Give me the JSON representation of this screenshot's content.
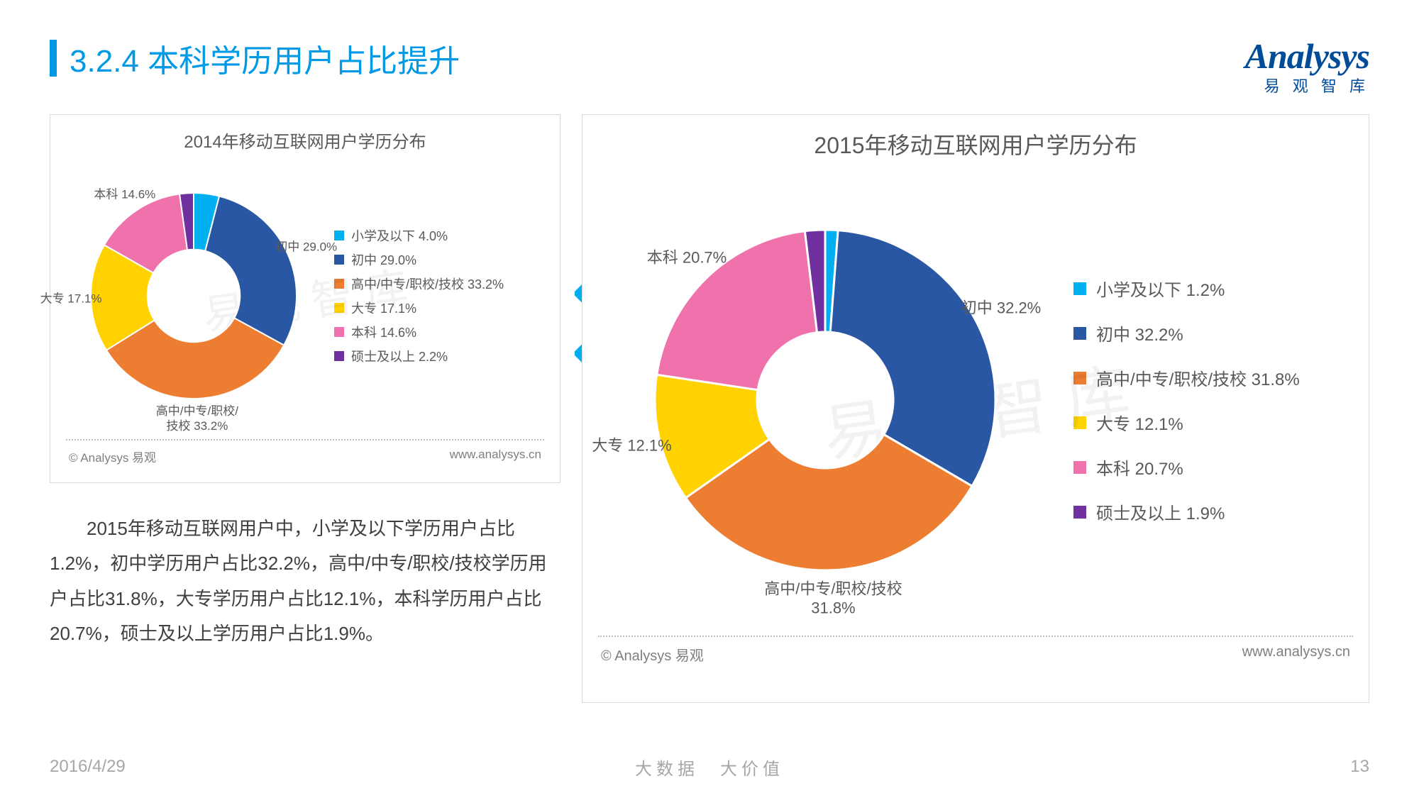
{
  "header": {
    "title": "3.2.4 本科学历用户占比提升",
    "accent_color": "#0099e6",
    "logo_main": "Analysys",
    "logo_sub": "易 观 智 库",
    "logo_color": "#004c99"
  },
  "chart2014": {
    "type": "donut",
    "title": "2014年移动互联网用户学历分布",
    "inner_ratio": 0.45,
    "background_color": "#ffffff",
    "grid_dot_color": "#bfbfbf",
    "title_fontsize": 24,
    "label_fontsize": 17,
    "label_color": "#595959",
    "slices": [
      {
        "key": "primary",
        "label": "小学及以下",
        "value": 4.0,
        "color": "#00b0f0",
        "legend": "小学及以下 4.0%"
      },
      {
        "key": "junior",
        "label": "初中",
        "value": 29.0,
        "color": "#2957a4",
        "legend": "初中 29.0%",
        "callout": "初中 29.0%"
      },
      {
        "key": "senior",
        "label": "高中/中专/职校/技校",
        "value": 33.2,
        "color": "#ed7d31",
        "legend": "高中/中专/职校/技校 33.2%",
        "callout": "高中/中专/职校/\n技校 33.2%"
      },
      {
        "key": "college",
        "label": "大专",
        "value": 17.1,
        "color": "#ffd200",
        "legend": "大专 17.1%",
        "callout": "大专 17.1%"
      },
      {
        "key": "bachelor",
        "label": "本科",
        "value": 14.6,
        "color": "#f072ac",
        "legend": "本科 14.6%",
        "callout": "本科 14.6%"
      },
      {
        "key": "master",
        "label": "硕士及以上",
        "value": 2.2,
        "color": "#7030a0",
        "legend": "硕士及以上 2.2%"
      }
    ],
    "copyright": "© Analysys 易观",
    "url": "www.analysys.cn"
  },
  "chart2015": {
    "type": "donut",
    "title": "2015年移动互联网用户学历分布",
    "inner_ratio": 0.4,
    "background_color": "#ffffff",
    "grid_dot_color": "#bfbfbf",
    "title_fontsize": 32,
    "label_fontsize": 22,
    "label_color": "#595959",
    "slices": [
      {
        "key": "primary",
        "label": "小学及以下",
        "value": 1.2,
        "color": "#00b0f0",
        "legend": "小学及以下 1.2%"
      },
      {
        "key": "junior",
        "label": "初中",
        "value": 32.2,
        "color": "#2957a4",
        "legend": "初中 32.2%",
        "callout": "初中 32.2%"
      },
      {
        "key": "senior",
        "label": "高中/中专/职校/技校",
        "value": 31.8,
        "color": "#ed7d31",
        "legend": "高中/中专/职校/技校 31.8%",
        "callout": "高中/中专/职校/技校\n31.8%"
      },
      {
        "key": "college",
        "label": "大专",
        "value": 12.1,
        "color": "#ffd200",
        "legend": "大专 12.1%",
        "callout": "大专 12.1%"
      },
      {
        "key": "bachelor",
        "label": "本科",
        "value": 20.7,
        "color": "#f072ac",
        "legend": "本科 20.7%",
        "callout": "本科 20.7%"
      },
      {
        "key": "master",
        "label": "硕士及以上",
        "value": 1.9,
        "color": "#7030a0",
        "legend": "硕士及以上 1.9%"
      }
    ],
    "copyright": "© Analysys 易观",
    "url": "www.analysys.cn"
  },
  "body_text": "2015年移动互联网用户中，小学及以下学历用户占比1.2%，初中学历用户占比32.2%，高中/中专/职校/技校学历用户占比31.8%，大专学历用户占比12.1%，本科学历用户占比20.7%，硕士及以上学历用户占比1.9%。",
  "chevron_color": "#00aeef",
  "watermark": "易 观 智 库",
  "footer": {
    "date": "2016/4/29",
    "mid": "大数据　大价值",
    "page": "13",
    "color": "#a6a6a6"
  }
}
